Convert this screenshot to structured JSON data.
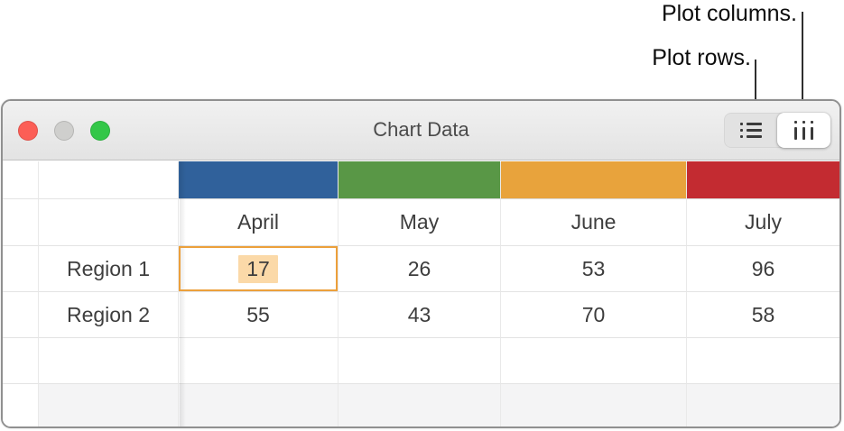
{
  "callouts": {
    "plot_columns": "Plot columns.",
    "plot_rows": "Plot rows."
  },
  "window": {
    "title": "Chart Data",
    "traffic_lights": [
      {
        "name": "close",
        "color": "#fc5e56"
      },
      {
        "name": "minimize",
        "color": "#cfcfcd"
      },
      {
        "name": "zoom",
        "color": "#33c748"
      }
    ]
  },
  "toolbar": {
    "plot_style_segments": [
      {
        "id": "plot-rows",
        "icon": "plot-rows-icon",
        "selected": false
      },
      {
        "id": "plot-columns",
        "icon": "plot-columns-icon",
        "selected": true
      }
    ]
  },
  "table": {
    "column_headers": [
      "April",
      "May",
      "June",
      "July"
    ],
    "row_headers": [
      "Region 1",
      "Region 2"
    ],
    "rows": [
      [
        17,
        26,
        53,
        96
      ],
      [
        55,
        43,
        70,
        58
      ]
    ],
    "series_colors": [
      "#30619b",
      "#599746",
      "#e8a33c",
      "#c32b31"
    ],
    "selected_cell": {
      "row": "Region 1",
      "column": "April",
      "value": 17,
      "border_color": "#eca03b",
      "highlight_color": "#fbd9a8"
    }
  }
}
